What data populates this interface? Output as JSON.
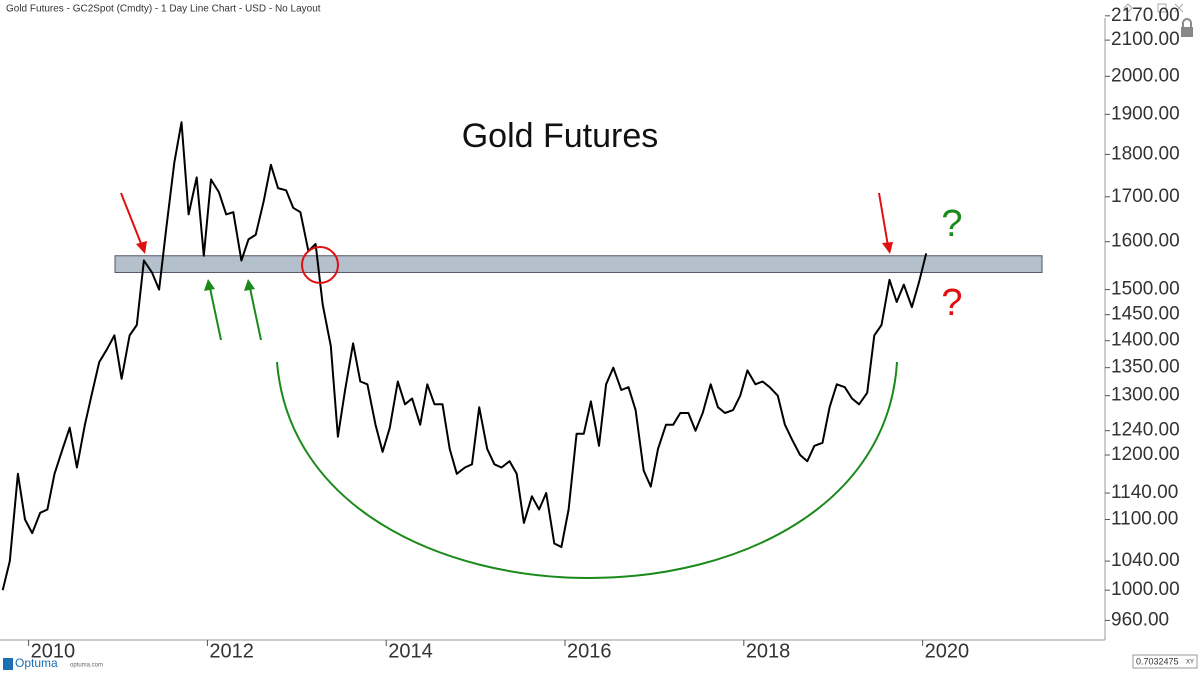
{
  "header": {
    "text": "Gold Futures - GC2Spot (Cmdty) - 1 Day Line Chart - USD - No Layout"
  },
  "footer": {
    "logo": "Optuma",
    "site": "optuma.com",
    "readout": "0.7032475",
    "readout_mode": "XY"
  },
  "chart_data": {
    "type": "line",
    "title": "Gold Futures",
    "annotations": {
      "upper_mark": "?",
      "lower_mark": "?"
    },
    "log_scale": true,
    "zone": [
      1535,
      1570
    ],
    "xlim": [
      2009.68,
      2022.04
    ],
    "xticks": [
      2010,
      2012,
      2014,
      2016,
      2018,
      2020
    ],
    "ylim": [
      935,
      2193
    ],
    "yticks": [
      {
        "value": 960,
        "label": "960.00"
      },
      {
        "value": 1000,
        "label": "1000.00"
      },
      {
        "value": 1040,
        "label": "1040.00"
      },
      {
        "value": 1100,
        "label": "1100.00"
      },
      {
        "value": 1140,
        "label": "1140.00"
      },
      {
        "value": 1200,
        "label": "1200.00"
      },
      {
        "value": 1240,
        "label": "1240.00"
      },
      {
        "value": 1300,
        "label": "1300.00"
      },
      {
        "value": 1350,
        "label": "1350.00"
      },
      {
        "value": 1400,
        "label": "1400.00"
      },
      {
        "value": 1450,
        "label": "1450.00"
      },
      {
        "value": 1500,
        "label": "1500.00"
      },
      {
        "value": 1600,
        "label": "1600.00"
      },
      {
        "value": 1700,
        "label": "1700.00"
      },
      {
        "value": 1800,
        "label": "1800.00"
      },
      {
        "value": 1900,
        "label": "1900.00"
      },
      {
        "value": 2000,
        "label": "2000.00"
      },
      {
        "value": 2100,
        "label": "2100.00"
      },
      {
        "value": 2170,
        "label": "2170.00"
      }
    ],
    "x": [
      2009.71,
      2009.79,
      2009.88,
      2009.96,
      2010.04,
      2010.13,
      2010.21,
      2010.29,
      2010.38,
      2010.46,
      2010.54,
      2010.63,
      2010.71,
      2010.79,
      2010.88,
      2010.96,
      2011.04,
      2011.13,
      2011.21,
      2011.29,
      2011.38,
      2011.46,
      2011.54,
      2011.63,
      2011.71,
      2011.79,
      2011.88,
      2011.96,
      2012.04,
      2012.13,
      2012.21,
      2012.29,
      2012.38,
      2012.46,
      2012.54,
      2012.63,
      2012.71,
      2012.79,
      2012.88,
      2012.96,
      2013.04,
      2013.13,
      2013.21,
      2013.29,
      2013.38,
      2013.46,
      2013.54,
      2013.63,
      2013.71,
      2013.79,
      2013.88,
      2013.96,
      2014.04,
      2014.13,
      2014.21,
      2014.29,
      2014.38,
      2014.46,
      2014.54,
      2014.63,
      2014.71,
      2014.79,
      2014.88,
      2014.96,
      2015.04,
      2015.13,
      2015.21,
      2015.29,
      2015.38,
      2015.46,
      2015.54,
      2015.63,
      2015.71,
      2015.79,
      2015.88,
      2015.96,
      2016.04,
      2016.13,
      2016.21,
      2016.29,
      2016.38,
      2016.46,
      2016.54,
      2016.63,
      2016.71,
      2016.79,
      2016.88,
      2016.96,
      2017.04,
      2017.13,
      2017.21,
      2017.29,
      2017.38,
      2017.46,
      2017.54,
      2017.63,
      2017.71,
      2017.79,
      2017.88,
      2017.96,
      2018.04,
      2018.13,
      2018.21,
      2018.29,
      2018.38,
      2018.46,
      2018.54,
      2018.63,
      2018.71,
      2018.79,
      2018.88,
      2018.96,
      2019.04,
      2019.13,
      2019.21,
      2019.29,
      2019.38,
      2019.46,
      2019.54,
      2019.63,
      2019.71,
      2019.79,
      2019.88,
      2019.96,
      2020.04
    ],
    "series": [
      {
        "name": "GC2Spot",
        "color": "#000000",
        "values": [
          1000,
          1040,
          1170,
          1100,
          1080,
          1110,
          1115,
          1170,
          1210,
          1245,
          1180,
          1250,
          1305,
          1360,
          1385,
          1410,
          1330,
          1410,
          1430,
          1560,
          1535,
          1500,
          1630,
          1780,
          1880,
          1660,
          1745,
          1570,
          1740,
          1710,
          1660,
          1665,
          1560,
          1605,
          1615,
          1690,
          1775,
          1720,
          1715,
          1675,
          1665,
          1580,
          1595,
          1470,
          1390,
          1230,
          1310,
          1395,
          1325,
          1320,
          1250,
          1205,
          1245,
          1325,
          1285,
          1295,
          1250,
          1320,
          1285,
          1285,
          1210,
          1170,
          1180,
          1185,
          1280,
          1210,
          1185,
          1180,
          1190,
          1170,
          1095,
          1135,
          1115,
          1140,
          1065,
          1060,
          1115,
          1235,
          1235,
          1290,
          1215,
          1320,
          1350,
          1310,
          1315,
          1275,
          1175,
          1150,
          1210,
          1250,
          1250,
          1270,
          1270,
          1240,
          1270,
          1320,
          1280,
          1270,
          1275,
          1300,
          1345,
          1320,
          1325,
          1315,
          1300,
          1250,
          1225,
          1200,
          1190,
          1215,
          1220,
          1280,
          1320,
          1315,
          1295,
          1285,
          1305,
          1410,
          1430,
          1520,
          1475,
          1510,
          1465,
          1515,
          1575
        ]
      }
    ]
  }
}
